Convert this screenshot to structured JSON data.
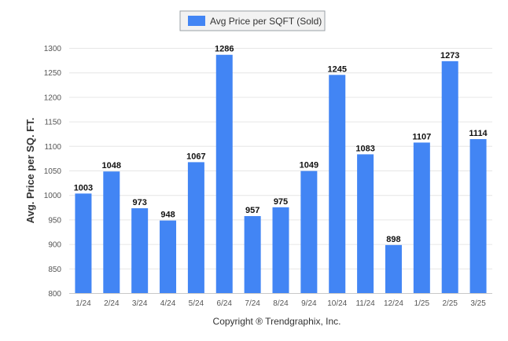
{
  "chart_data": {
    "type": "bar",
    "legend": {
      "label": "Avg Price per SQFT (Sold)",
      "placement": "top-center"
    },
    "ylabel": "Avg. Price per SQ. FT.",
    "xlabel": "",
    "ylim": [
      800,
      1300
    ],
    "yticks": [
      800,
      850,
      900,
      950,
      1000,
      1050,
      1100,
      1150,
      1200,
      1250,
      1300
    ],
    "grid": true,
    "categories": [
      "1/24",
      "2/24",
      "3/24",
      "4/24",
      "5/24",
      "6/24",
      "7/24",
      "8/24",
      "9/24",
      "10/24",
      "11/24",
      "12/24",
      "1/25",
      "2/25",
      "3/25"
    ],
    "series": [
      {
        "name": "Avg Price per SQFT (Sold)",
        "color": "#4285f4",
        "values": [
          1003,
          1048,
          973,
          948,
          1067,
          1286,
          957,
          975,
          1049,
          1245,
          1083,
          898,
          1107,
          1273,
          1114
        ]
      }
    ]
  },
  "footer": {
    "copyright": "Copyright ® Trendgraphix, Inc."
  }
}
